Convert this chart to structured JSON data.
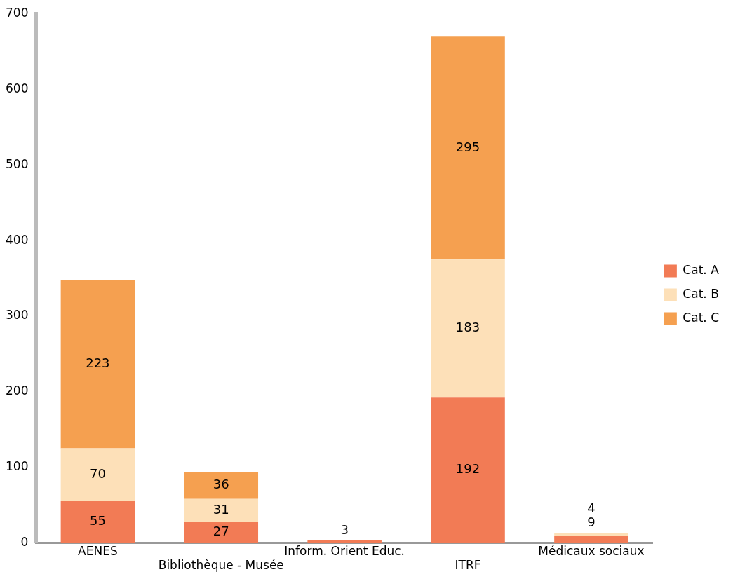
{
  "chart_data": {
    "type": "bar",
    "stacked": true,
    "categories": [
      "AENES",
      "Bibliothèque - Musée",
      "Inform. Orient Educ.",
      "ITRF",
      "Médicaux sociaux"
    ],
    "series": [
      {
        "name": "Cat. A",
        "color": "#f27b55",
        "values": [
          55,
          27,
          3,
          192,
          9
        ]
      },
      {
        "name": "Cat. B",
        "color": "#fde0b8",
        "values": [
          70,
          31,
          null,
          183,
          4
        ]
      },
      {
        "name": "Cat. C",
        "color": "#f5a050",
        "values": [
          223,
          36,
          null,
          295,
          null
        ]
      }
    ],
    "ylim": [
      0,
      700
    ],
    "yticks": [
      0,
      100,
      200,
      300,
      400,
      500,
      600,
      700
    ],
    "grid": false,
    "legend": "right",
    "data_labels": true
  }
}
